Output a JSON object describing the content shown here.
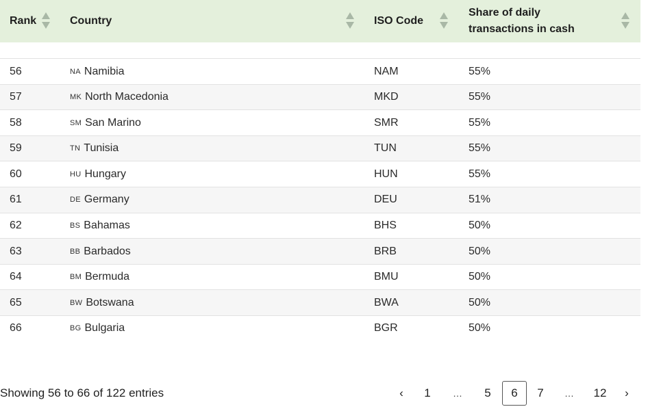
{
  "table": {
    "headers": {
      "rank": "Rank",
      "country": "Country",
      "iso": "ISO Code",
      "share": "Share of daily transactions in cash"
    },
    "rows": [
      {
        "rank": "56",
        "flag": "NA",
        "country": "Namibia",
        "iso": "NAM",
        "share": "55%"
      },
      {
        "rank": "57",
        "flag": "MK",
        "country": "North Macedonia",
        "iso": "MKD",
        "share": "55%"
      },
      {
        "rank": "58",
        "flag": "SM",
        "country": "San Marino",
        "iso": "SMR",
        "share": "55%"
      },
      {
        "rank": "59",
        "flag": "TN",
        "country": "Tunisia",
        "iso": "TUN",
        "share": "55%"
      },
      {
        "rank": "60",
        "flag": "HU",
        "country": "Hungary",
        "iso": "HUN",
        "share": "55%"
      },
      {
        "rank": "61",
        "flag": "DE",
        "country": "Germany",
        "iso": "DEU",
        "share": "51%"
      },
      {
        "rank": "62",
        "flag": "BS",
        "country": "Bahamas",
        "iso": "BHS",
        "share": "50%"
      },
      {
        "rank": "63",
        "flag": "BB",
        "country": "Barbados",
        "iso": "BRB",
        "share": "50%"
      },
      {
        "rank": "64",
        "flag": "BM",
        "country": "Bermuda",
        "iso": "BMU",
        "share": "50%"
      },
      {
        "rank": "65",
        "flag": "BW",
        "country": "Botswana",
        "iso": "BWA",
        "share": "50%"
      },
      {
        "rank": "66",
        "flag": "BG",
        "country": "Bulgaria",
        "iso": "BGR",
        "share": "50%"
      }
    ]
  },
  "footer": {
    "info": "Showing 56 to 66 of 122 entries",
    "pagination": {
      "prev": "‹",
      "next": "›",
      "ellipsis": "…",
      "pages": [
        "1",
        "5",
        "6",
        "7",
        "12"
      ],
      "current": "6"
    }
  },
  "colors": {
    "header_bg": "#e4f0dc",
    "row_alt_bg": "#f6f6f6",
    "sort_arrow": "#a9b8a6"
  }
}
